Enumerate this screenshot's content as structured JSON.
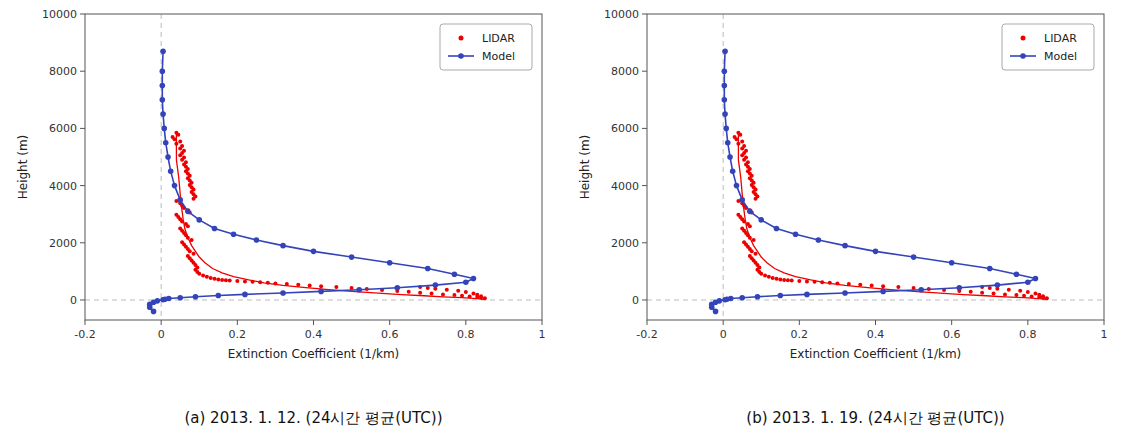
{
  "chart_data": [
    {
      "type": "line",
      "title": "(a) 2013. 1. 12. (24시간 평균(UTC))",
      "xlabel": "Extinction Coefficient (1/km)",
      "ylabel": "Height (m)",
      "xlim": [
        -0.2,
        1.0
      ],
      "ylim": [
        -700,
        10000
      ],
      "xticks": [
        -0.2,
        0,
        0.2,
        0.4,
        0.6,
        0.8,
        1.0
      ],
      "yticks": [
        0,
        2000,
        4000,
        6000,
        8000,
        10000
      ],
      "legend": "upper right",
      "hlines": [
        {
          "value": 0,
          "color": "#BBBBBB",
          "line_style": "dashed"
        }
      ],
      "vlines": [
        {
          "value": 0,
          "color": "#BBBBBB",
          "line_style": "dashed"
        }
      ],
      "series": [
        {
          "type": "line",
          "color": "#EE0000",
          "x": [
            0.04,
            0.04,
            0.04,
            0.04,
            0.043,
            0.046,
            0.048,
            0.05,
            0.052,
            0.055,
            0.058,
            0.062,
            0.067,
            0.073,
            0.08,
            0.09,
            0.1,
            0.115,
            0.135,
            0.16,
            0.19,
            0.23,
            0.27,
            0.32,
            0.38,
            0.44,
            0.51,
            0.57,
            0.63,
            0.69,
            0.74,
            0.79,
            0.83,
            0.85
          ],
          "values": [
            5800,
            5500,
            5200,
            4900,
            4600,
            4300,
            4000,
            3700,
            3400,
            3100,
            2800,
            2500,
            2300,
            2100,
            1900,
            1700,
            1500,
            1300,
            1100,
            950,
            820,
            700,
            600,
            510,
            430,
            360,
            295,
            240,
            190,
            148,
            112,
            80,
            50,
            20
          ]
        },
        {
          "name": "LIDAR",
          "type": "scatter",
          "marker": "circle",
          "color": "#EE0000",
          "x": [
            0.04,
            0.045,
            0.03,
            0.035,
            0.05,
            0.04,
            0.055,
            0.05,
            0.06,
            0.055,
            0.05,
            0.06,
            0.055,
            0.065,
            0.06,
            0.065,
            0.07,
            0.065,
            0.07,
            0.075,
            0.07,
            0.075,
            0.08,
            0.075,
            0.08,
            0.085,
            0.08,
            0.085,
            0.09,
            0.085,
            0.04,
            0.05,
            0.055,
            0.06,
            0.07,
            0.075,
            0.04,
            0.045,
            0.05,
            0.055,
            0.065,
            0.07,
            0.05,
            0.055,
            0.06,
            0.065,
            0.07,
            0.08,
            0.055,
            0.06,
            0.065,
            0.07,
            0.075,
            0.085,
            0.07,
            0.075,
            0.08,
            0.085,
            0.09,
            0.095,
            0.09,
            0.095,
            0.1,
            0.11,
            0.12,
            0.13,
            0.14,
            0.15,
            0.16,
            0.17,
            0.18,
            0.2,
            0.22,
            0.24,
            0.26,
            0.28,
            0.3,
            0.33,
            0.36,
            0.39,
            0.42,
            0.46,
            0.5,
            0.54,
            0.58,
            0.62,
            0.65,
            0.68,
            0.71,
            0.74,
            0.77,
            0.79,
            0.81,
            0.83,
            0.84,
            0.85,
            0.84,
            0.83,
            0.82,
            0.8,
            0.78,
            0.75,
            0.72,
            0.7,
            0.68
          ],
          "values": [
            5850,
            5780,
            5700,
            5620,
            5540,
            5460,
            5380,
            5300,
            5220,
            5140,
            5060,
            4980,
            4900,
            4820,
            4740,
            4660,
            4580,
            4500,
            4420,
            4340,
            4260,
            4180,
            4100,
            4020,
            3940,
            3860,
            3780,
            3700,
            3620,
            3540,
            3460,
            3380,
            3300,
            3220,
            3140,
            3060,
            2980,
            2900,
            2820,
            2740,
            2660,
            2580,
            2500,
            2420,
            2340,
            2260,
            2180,
            2100,
            2020,
            1940,
            1860,
            1780,
            1700,
            1620,
            1540,
            1460,
            1380,
            1300,
            1220,
            1140,
            1060,
            980,
            920,
            860,
            810,
            770,
            740,
            720,
            700,
            690,
            680,
            665,
            650,
            635,
            620,
            600,
            580,
            555,
            530,
            505,
            480,
            450,
            420,
            385,
            350,
            315,
            285,
            255,
            225,
            195,
            170,
            145,
            125,
            100,
            80,
            60,
            130,
            180,
            230,
            280,
            320,
            360,
            395,
            420,
            450
          ]
        },
        {
          "name": "Model",
          "type": "line",
          "marker": "circle",
          "color": "#3344BB",
          "x": [
            0.005,
            0.003,
            0.003,
            0.003,
            0.005,
            0.008,
            0.012,
            0.018,
            0.025,
            0.035,
            0.05,
            0.07,
            0.1,
            0.14,
            0.19,
            0.25,
            0.32,
            0.4,
            0.5,
            0.6,
            0.7,
            0.77,
            0.82,
            0.8,
            0.72,
            0.62,
            0.52,
            0.42,
            0.32,
            0.22,
            0.15,
            0.09,
            0.05,
            0.02,
            0.01,
            0.005,
            -0.01,
            -0.02,
            -0.03,
            -0.03,
            -0.02
          ],
          "values": [
            8700,
            8000,
            7500,
            7000,
            6500,
            6000,
            5500,
            5000,
            4500,
            4000,
            3500,
            3100,
            2800,
            2500,
            2300,
            2100,
            1900,
            1700,
            1500,
            1300,
            1100,
            900,
            750,
            620,
            520,
            430,
            360,
            300,
            245,
            195,
            155,
            115,
            80,
            50,
            25,
            10,
            -30,
            -80,
            -150,
            -250,
            -400
          ]
        }
      ]
    },
    {
      "type": "line",
      "title": "(b) 2013. 1. 19. (24시간 평균(UTC))",
      "xlabel": "Extinction Coefficient (1/km)",
      "ylabel": "Height (m)",
      "xlim": [
        -0.2,
        1.0
      ],
      "ylim": [
        -700,
        10000
      ],
      "xticks": [
        -0.2,
        0,
        0.2,
        0.4,
        0.6,
        0.8,
        1.0
      ],
      "yticks": [
        0,
        2000,
        4000,
        6000,
        8000,
        10000
      ],
      "legend": "upper right",
      "hlines": [
        {
          "value": 0,
          "color": "#BBBBBB",
          "line_style": "dashed"
        }
      ],
      "vlines": [
        {
          "value": 0,
          "color": "#BBBBBB",
          "line_style": "dashed"
        }
      ],
      "series": [
        {
          "type": "line",
          "color": "#EE0000",
          "x": [
            0.04,
            0.04,
            0.04,
            0.04,
            0.043,
            0.046,
            0.048,
            0.05,
            0.052,
            0.055,
            0.058,
            0.062,
            0.067,
            0.073,
            0.08,
            0.09,
            0.1,
            0.115,
            0.135,
            0.16,
            0.19,
            0.23,
            0.27,
            0.32,
            0.38,
            0.44,
            0.51,
            0.57,
            0.63,
            0.69,
            0.74,
            0.79,
            0.83,
            0.85
          ],
          "values": [
            5800,
            5500,
            5200,
            4900,
            4600,
            4300,
            4000,
            3700,
            3400,
            3100,
            2800,
            2500,
            2300,
            2100,
            1900,
            1700,
            1500,
            1300,
            1100,
            950,
            820,
            700,
            600,
            510,
            430,
            360,
            295,
            240,
            190,
            148,
            112,
            80,
            50,
            20
          ]
        },
        {
          "name": "LIDAR",
          "type": "scatter",
          "marker": "circle",
          "color": "#EE0000",
          "x": [
            0.04,
            0.045,
            0.03,
            0.035,
            0.05,
            0.04,
            0.055,
            0.05,
            0.06,
            0.055,
            0.05,
            0.06,
            0.055,
            0.065,
            0.06,
            0.065,
            0.07,
            0.065,
            0.07,
            0.075,
            0.07,
            0.075,
            0.08,
            0.075,
            0.08,
            0.085,
            0.08,
            0.085,
            0.09,
            0.085,
            0.04,
            0.05,
            0.055,
            0.06,
            0.07,
            0.075,
            0.04,
            0.045,
            0.05,
            0.055,
            0.065,
            0.07,
            0.05,
            0.055,
            0.06,
            0.065,
            0.07,
            0.08,
            0.055,
            0.06,
            0.065,
            0.07,
            0.075,
            0.085,
            0.07,
            0.075,
            0.08,
            0.085,
            0.09,
            0.095,
            0.09,
            0.095,
            0.1,
            0.11,
            0.12,
            0.13,
            0.14,
            0.15,
            0.16,
            0.17,
            0.18,
            0.2,
            0.22,
            0.24,
            0.26,
            0.28,
            0.3,
            0.33,
            0.36,
            0.39,
            0.42,
            0.46,
            0.5,
            0.54,
            0.58,
            0.62,
            0.65,
            0.68,
            0.71,
            0.74,
            0.77,
            0.79,
            0.81,
            0.83,
            0.84,
            0.85,
            0.84,
            0.83,
            0.82,
            0.8,
            0.78,
            0.75,
            0.72,
            0.7,
            0.68
          ],
          "values": [
            5850,
            5780,
            5700,
            5620,
            5540,
            5460,
            5380,
            5300,
            5220,
            5140,
            5060,
            4980,
            4900,
            4820,
            4740,
            4660,
            4580,
            4500,
            4420,
            4340,
            4260,
            4180,
            4100,
            4020,
            3940,
            3860,
            3780,
            3700,
            3620,
            3540,
            3460,
            3380,
            3300,
            3220,
            3140,
            3060,
            2980,
            2900,
            2820,
            2740,
            2660,
            2580,
            2500,
            2420,
            2340,
            2260,
            2180,
            2100,
            2020,
            1940,
            1860,
            1780,
            1700,
            1620,
            1540,
            1460,
            1380,
            1300,
            1220,
            1140,
            1060,
            980,
            920,
            860,
            810,
            770,
            740,
            720,
            700,
            690,
            680,
            665,
            650,
            635,
            620,
            600,
            580,
            555,
            530,
            505,
            480,
            450,
            420,
            385,
            350,
            315,
            285,
            255,
            225,
            195,
            170,
            145,
            125,
            100,
            80,
            60,
            130,
            180,
            230,
            280,
            320,
            360,
            395,
            420,
            450
          ]
        },
        {
          "name": "Model",
          "type": "line",
          "marker": "circle",
          "color": "#3344BB",
          "x": [
            0.005,
            0.003,
            0.003,
            0.003,
            0.005,
            0.008,
            0.012,
            0.018,
            0.025,
            0.035,
            0.05,
            0.07,
            0.1,
            0.14,
            0.19,
            0.25,
            0.32,
            0.4,
            0.5,
            0.6,
            0.7,
            0.77,
            0.82,
            0.8,
            0.72,
            0.62,
            0.52,
            0.42,
            0.32,
            0.22,
            0.15,
            0.09,
            0.05,
            0.02,
            0.01,
            0.005,
            -0.01,
            -0.02,
            -0.03,
            -0.03,
            -0.02
          ],
          "values": [
            8700,
            8000,
            7500,
            7000,
            6500,
            6000,
            5500,
            5000,
            4500,
            4000,
            3500,
            3100,
            2800,
            2500,
            2300,
            2100,
            1900,
            1700,
            1500,
            1300,
            1100,
            900,
            750,
            620,
            520,
            430,
            360,
            300,
            245,
            195,
            155,
            115,
            80,
            50,
            25,
            10,
            -30,
            -80,
            -150,
            -250,
            -400
          ]
        }
      ]
    }
  ]
}
